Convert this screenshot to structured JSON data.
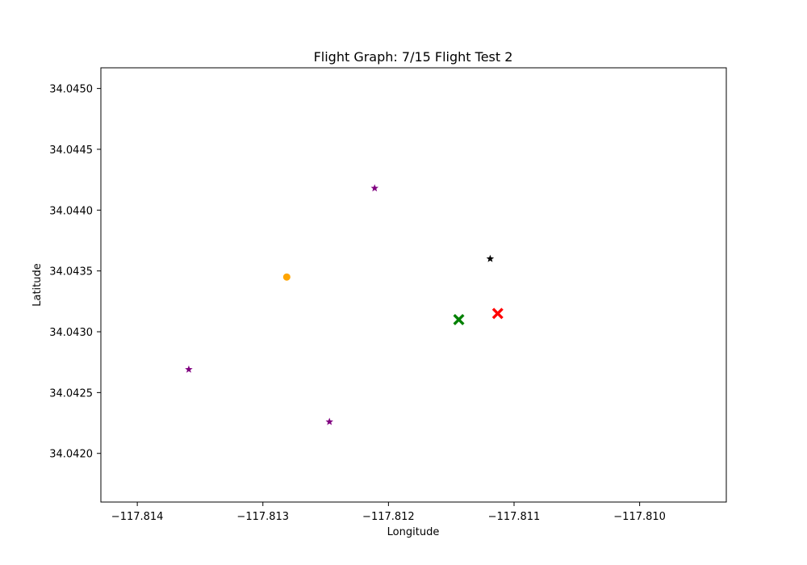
{
  "chart_data": {
    "type": "scatter",
    "title": "Flight Graph: 7/15 Flight Test 2",
    "xlabel": "Longitude",
    "ylabel": "Latitude",
    "xlim": [
      -117.81429,
      -117.80931
    ],
    "ylim": [
      34.0416,
      34.04517
    ],
    "x_ticks": [
      {
        "value": -117.814,
        "label": "−117.814"
      },
      {
        "value": -117.813,
        "label": "−117.813"
      },
      {
        "value": -117.812,
        "label": "−117.812"
      },
      {
        "value": -117.811,
        "label": "−117.811"
      },
      {
        "value": -117.81,
        "label": "−117.810"
      }
    ],
    "y_ticks": [
      {
        "value": 34.042,
        "label": "34.0420"
      },
      {
        "value": 34.0425,
        "label": "34.0425"
      },
      {
        "value": 34.043,
        "label": "34.0430"
      },
      {
        "value": 34.0435,
        "label": "34.0435"
      },
      {
        "value": 34.044,
        "label": "34.0440"
      },
      {
        "value": 34.0445,
        "label": "34.0445"
      },
      {
        "value": 34.045,
        "label": "34.0450"
      }
    ],
    "grid": false,
    "legend": false,
    "points": [
      {
        "x": -117.81211,
        "y": 34.04418,
        "marker": "star",
        "color": "#800080",
        "size": "small"
      },
      {
        "x": -117.81359,
        "y": 34.04269,
        "marker": "star",
        "color": "#800080",
        "size": "small"
      },
      {
        "x": -117.81247,
        "y": 34.04226,
        "marker": "star",
        "color": "#800080",
        "size": "small"
      },
      {
        "x": -117.81119,
        "y": 34.0436,
        "marker": "star",
        "color": "#000000",
        "size": "small"
      },
      {
        "x": -117.81281,
        "y": 34.04345,
        "marker": "circle",
        "color": "#ffa500",
        "size": "small"
      },
      {
        "x": -117.81144,
        "y": 34.0431,
        "marker": "x",
        "color": "#008000",
        "size": "large"
      },
      {
        "x": -117.81113,
        "y": 34.04315,
        "marker": "x",
        "color": "#ff0000",
        "size": "large"
      }
    ]
  }
}
